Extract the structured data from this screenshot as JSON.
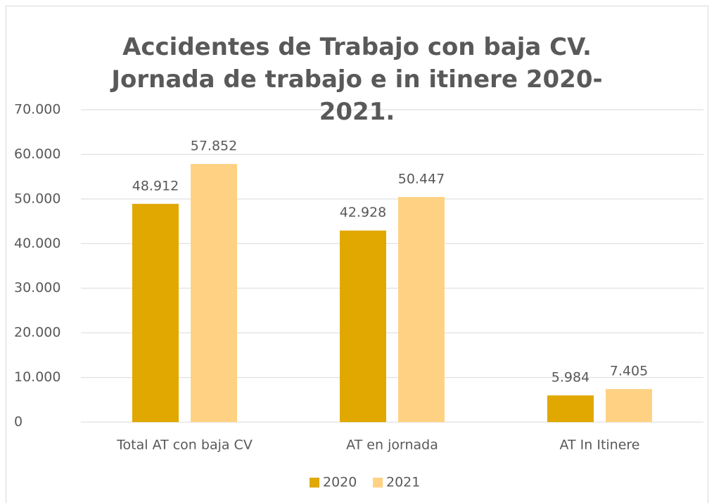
{
  "chart_data": {
    "type": "bar",
    "title": "Accidentes de Trabajo con baja CV. Jornada de trabajo e in itinere 2020-2021.",
    "categories": [
      "Total AT con baja CV",
      "AT en jornada",
      "AT In Itinere"
    ],
    "series": [
      {
        "name": "2020",
        "color": "#e0a800",
        "values": [
          48912,
          42928,
          5984
        ],
        "value_labels": [
          "48.912",
          "42.928",
          "5.984"
        ]
      },
      {
        "name": "2021",
        "color": "#ffd283",
        "values": [
          57852,
          50447,
          7405
        ],
        "value_labels": [
          "57.852",
          "50.447",
          "7.405"
        ]
      }
    ],
    "ylim": [
      0,
      70000
    ],
    "yticks": [
      0,
      {
        "value": 10000,
        "label": "10.000"
      },
      {
        "value": 20000,
        "label": "20.000"
      },
      {
        "value": 30000,
        "label": "30.000"
      },
      {
        "value": 40000,
        "label": "40.000"
      },
      {
        "value": 50000,
        "label": "50.000"
      },
      {
        "value": 60000,
        "label": "60.000"
      },
      {
        "value": 70000,
        "label": "70.000"
      }
    ],
    "grid": true,
    "legend": "bottom"
  }
}
